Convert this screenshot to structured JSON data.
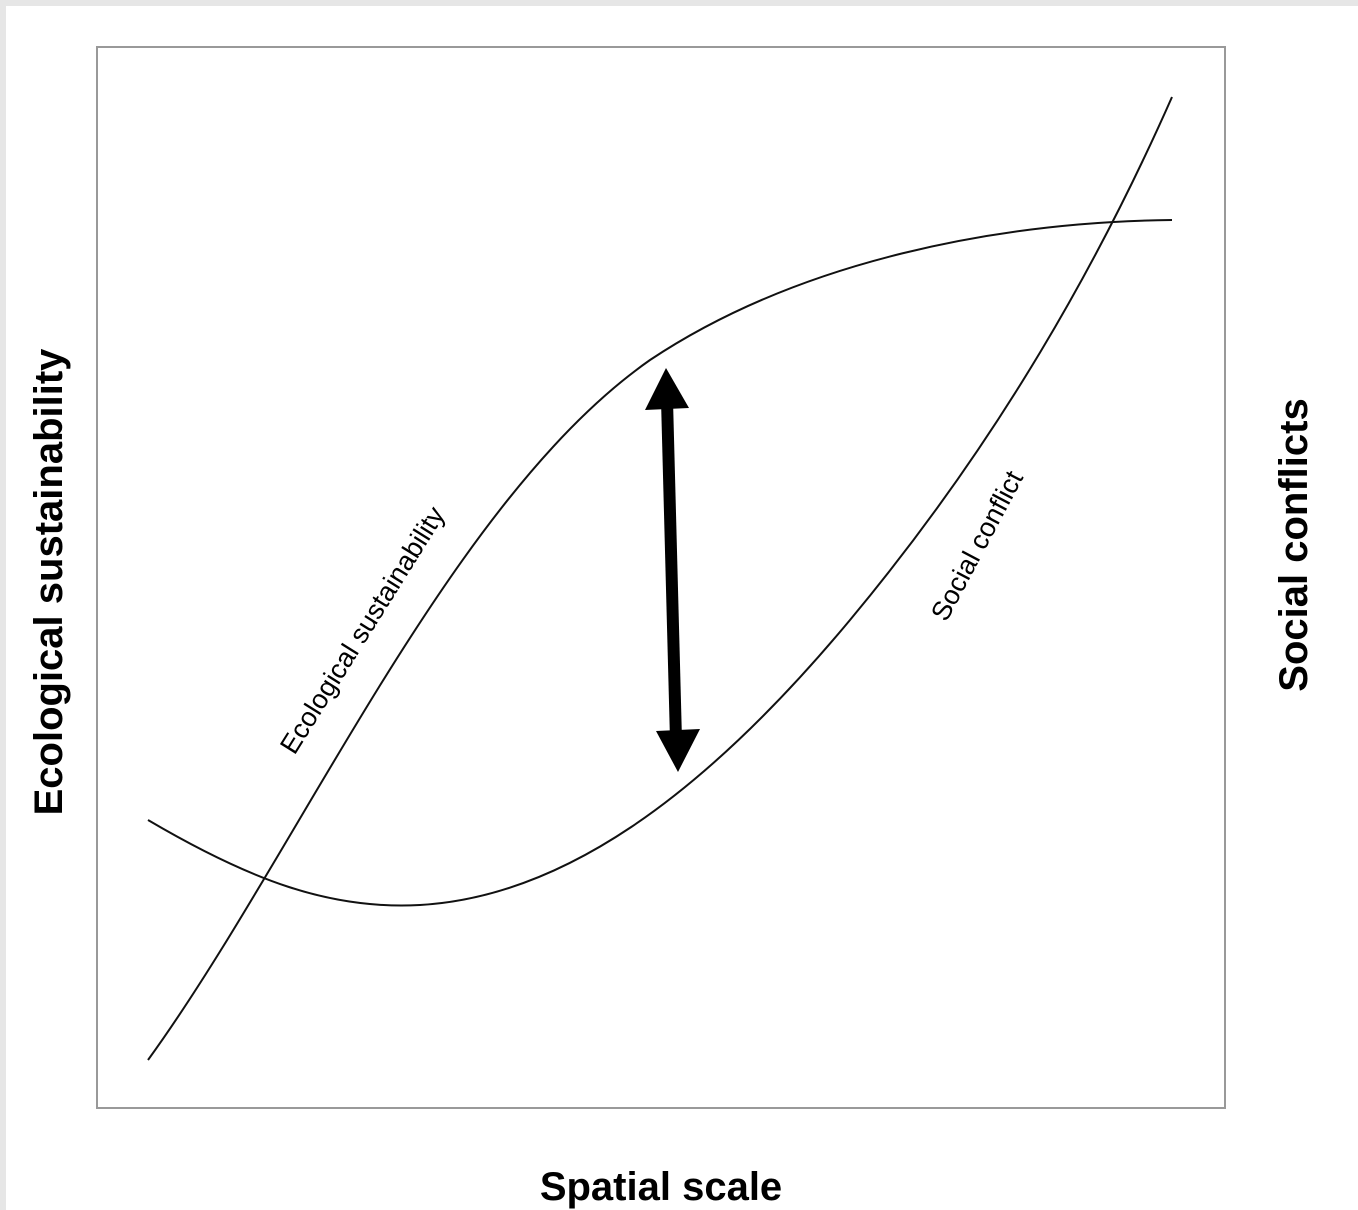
{
  "x_axis_label": "Spatial scale",
  "left_axis_label": "Ecological sustainability",
  "right_axis_label": "Social conflicts",
  "curves": [
    {
      "label": "Ecological sustainability"
    },
    {
      "label": "Social conflict"
    }
  ]
}
